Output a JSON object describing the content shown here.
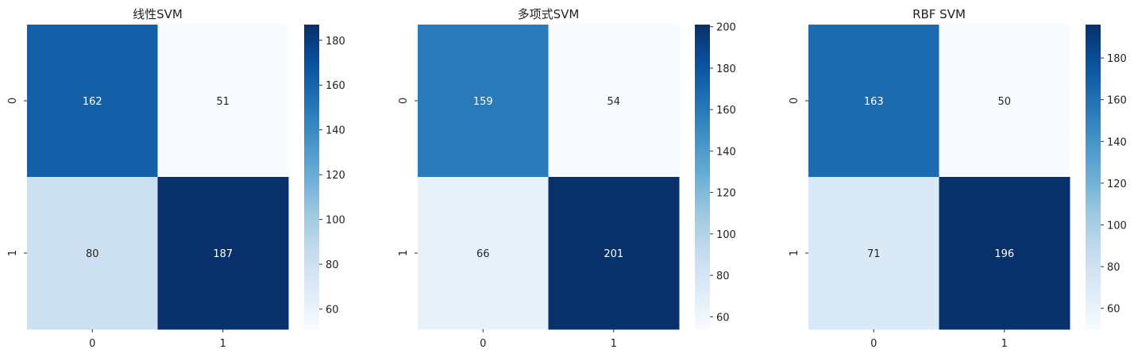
{
  "chart_data": [
    {
      "type": "heatmap",
      "title": "线性SVM",
      "x_ticks": [
        "0",
        "1"
      ],
      "y_ticks": [
        "0",
        "1"
      ],
      "matrix": [
        [
          162,
          51
        ],
        [
          80,
          187
        ]
      ],
      "colorbar": {
        "min": 51,
        "max": 187,
        "ticks": [
          60,
          80,
          100,
          120,
          140,
          160,
          180
        ]
      },
      "colormap": "Blues"
    },
    {
      "type": "heatmap",
      "title": "多项式SVM",
      "x_ticks": [
        "0",
        "1"
      ],
      "y_ticks": [
        "0",
        "1"
      ],
      "matrix": [
        [
          159,
          54
        ],
        [
          66,
          201
        ]
      ],
      "colorbar": {
        "min": 54,
        "max": 201,
        "ticks": [
          60,
          80,
          100,
          120,
          140,
          160,
          180,
          200
        ]
      },
      "colormap": "Blues"
    },
    {
      "type": "heatmap",
      "title": "RBF SVM",
      "x_ticks": [
        "0",
        "1"
      ],
      "y_ticks": [
        "0",
        "1"
      ],
      "matrix": [
        [
          163,
          50
        ],
        [
          71,
          196
        ]
      ],
      "colorbar": {
        "min": 50,
        "max": 196,
        "ticks": [
          60,
          80,
          100,
          120,
          140,
          160,
          180
        ]
      },
      "colormap": "Blues"
    }
  ],
  "colors": {
    "blues_low": "#f7fbff",
    "blues_high": "#08306b",
    "text_dark": "#262626",
    "text_light": "#ffffff"
  }
}
